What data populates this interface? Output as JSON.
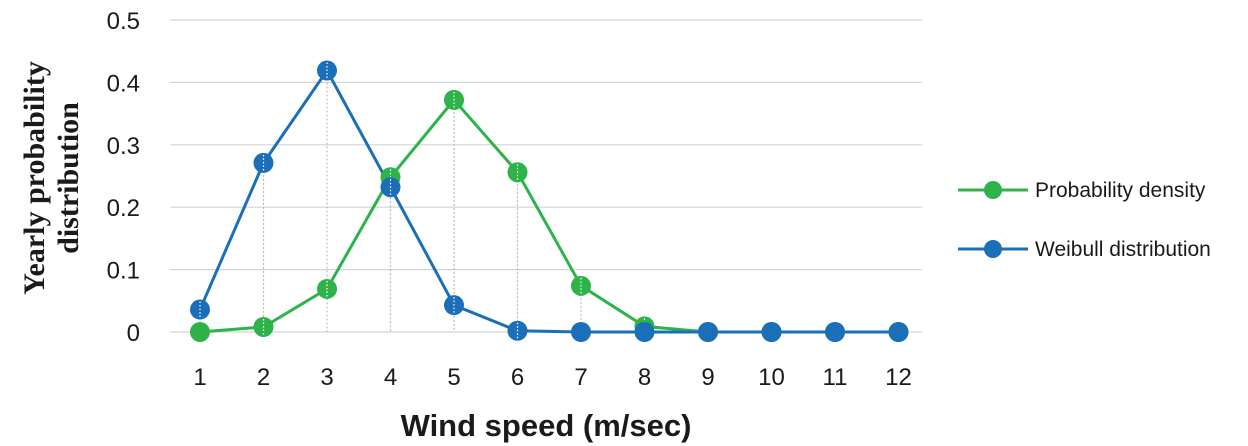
{
  "chart_data": {
    "type": "line",
    "title": "",
    "xlabel": "Wind speed (m/sec)",
    "ylabel_lines": [
      "Yearly probability",
      "distribution"
    ],
    "x": [
      1,
      2,
      3,
      4,
      5,
      6,
      7,
      8,
      9,
      10,
      11,
      12
    ],
    "x_tick_labels": [
      "1",
      "2",
      "3",
      "4",
      "5",
      "6",
      "7",
      "8",
      "9",
      "10",
      "11",
      "12"
    ],
    "ylim": [
      0,
      0.5
    ],
    "y_tick_labels": [
      "0",
      "0.1",
      "0.2",
      "0.3",
      "0.4",
      "0.5"
    ],
    "y_ticks": [
      0,
      0.1,
      0.2,
      0.3,
      0.4,
      0.5
    ],
    "grid": "horizontal",
    "drop_lines": true,
    "legend_position": "right",
    "series": [
      {
        "name": "Probability density",
        "color": "#2db34a",
        "values": [
          0.0,
          0.008,
          0.069,
          0.248,
          0.372,
          0.256,
          0.074,
          0.009,
          0.0,
          0.0,
          0.0,
          0.0
        ]
      },
      {
        "name": "Weibull distribution",
        "color": "#1a6fb8",
        "values": [
          0.036,
          0.271,
          0.419,
          0.232,
          0.043,
          0.002,
          0.0,
          0.0,
          0.0,
          0.0,
          0.0,
          0.0
        ]
      }
    ]
  }
}
